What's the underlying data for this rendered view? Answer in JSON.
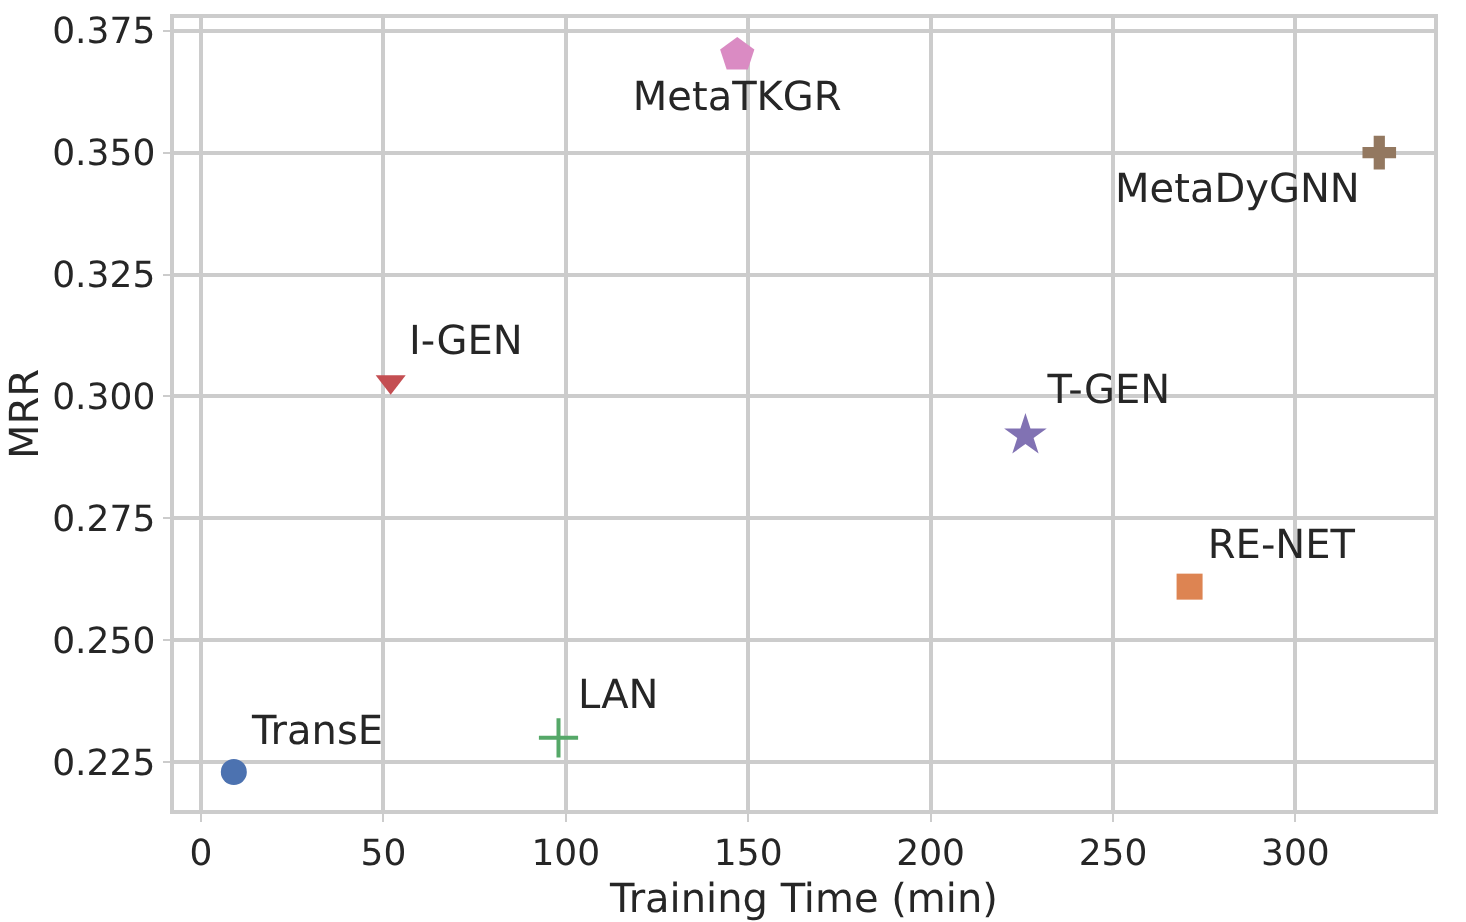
{
  "chart_data": {
    "type": "scatter",
    "xlabel": "Training Time (min)",
    "ylabel": "MRR",
    "xlim": [
      -7.4,
      338
    ],
    "ylim": [
      0.2152,
      0.3776
    ],
    "xticks": [
      0,
      50,
      100,
      150,
      200,
      250,
      300
    ],
    "yticks": [
      {
        "value": 0.225,
        "label": "0.225"
      },
      {
        "value": 0.25,
        "label": "0.250"
      },
      {
        "value": 0.275,
        "label": "0.275"
      },
      {
        "value": 0.3,
        "label": "0.300"
      },
      {
        "value": 0.325,
        "label": "0.325"
      },
      {
        "value": 0.35,
        "label": "0.350"
      },
      {
        "value": 0.375,
        "label": "0.375"
      }
    ],
    "grid": true,
    "legend": false,
    "series": [
      {
        "name": "TransE",
        "color": "#4c72b0",
        "marker": "circle",
        "x": [
          9
        ],
        "values": [
          0.223
        ]
      },
      {
        "name": "LAN",
        "color": "#55a868",
        "marker": "cross-thin",
        "x": [
          98
        ],
        "values": [
          0.23
        ]
      },
      {
        "name": "I-GEN",
        "color": "#c44e52",
        "marker": "triangle-down",
        "x": [
          52
        ],
        "values": [
          0.303
        ]
      },
      {
        "name": "T-GEN",
        "color": "#8172b3",
        "marker": "star",
        "x": [
          226
        ],
        "values": [
          0.292
        ]
      },
      {
        "name": "RE-NET",
        "color": "#dd8452",
        "marker": "square",
        "x": [
          271
        ],
        "values": [
          0.261
        ]
      },
      {
        "name": "MetaTKGR",
        "color": "#da8bc3",
        "x": [
          147
        ],
        "values": [
          0.37
        ]
      },
      {
        "name": "MetaDyGNN",
        "color": "#937860",
        "marker": "cross",
        "x": [
          323
        ],
        "values": [
          0.35
        ]
      }
    ]
  }
}
